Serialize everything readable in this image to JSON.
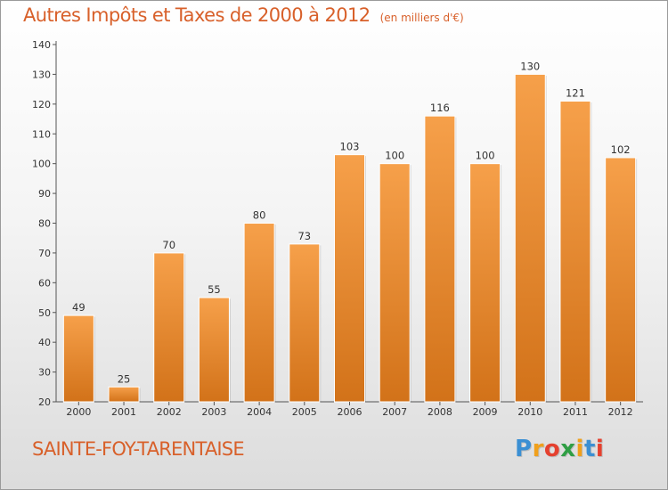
{
  "title": "Autres Impôts et Taxes de 2000 à 2012",
  "unit": "(en milliers d'€)",
  "commune": "SAINTE-FOY-TARENTAISE",
  "logo": {
    "letters": [
      "P",
      "r",
      "o",
      "x",
      "i",
      "t",
      "i"
    ],
    "colors": [
      "#3b8fd3",
      "#f0a01c",
      "#e5412f",
      "#2f9e44",
      "#f0a01c",
      "#3b8fd3",
      "#e5412f"
    ]
  },
  "colors": {
    "bar_top": "#f6a04a",
    "bar_bottom": "#d27219",
    "accent": "#d8602a",
    "axis": "#555555"
  },
  "chart_data": {
    "type": "bar",
    "categories": [
      "2000",
      "2001",
      "2002",
      "2003",
      "2004",
      "2005",
      "2006",
      "2007",
      "2008",
      "2009",
      "2010",
      "2011",
      "2012"
    ],
    "values": [
      49,
      25,
      70,
      55,
      80,
      73,
      103,
      100,
      116,
      100,
      130,
      121,
      102
    ],
    "ylim": [
      20,
      140
    ],
    "yticks": [
      20,
      30,
      40,
      50,
      60,
      70,
      80,
      90,
      100,
      110,
      120,
      130,
      140
    ],
    "grid": false,
    "data_labels": true
  }
}
